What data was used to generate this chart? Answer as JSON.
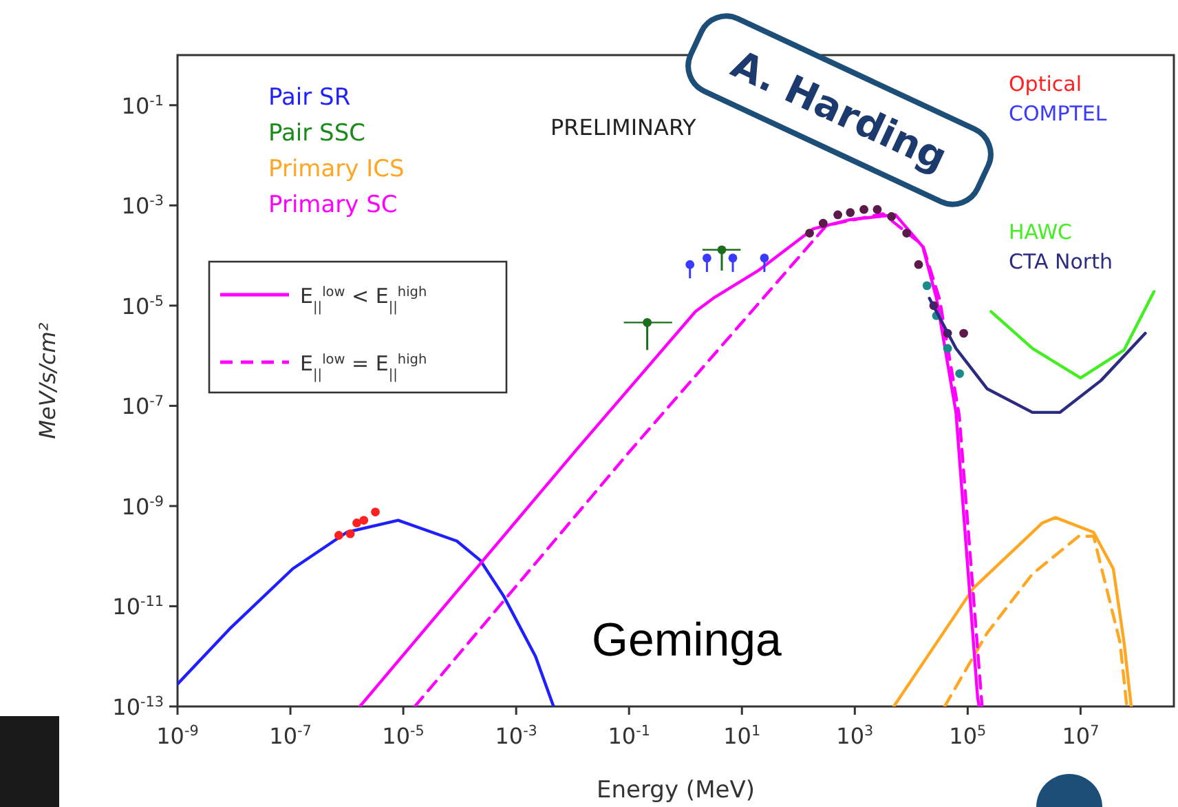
{
  "chart_data": {
    "type": "line",
    "xlabel": "Energy (MeV)",
    "ylabel": "MeV/s/cm²",
    "log": "xy",
    "grid": false,
    "legend": "top left",
    "xlim": [
      1e-09,
      450000000.0
    ],
    "ylim": [
      1e-13,
      1
    ],
    "xticks": [
      {
        "value": 1e-09,
        "label": "10$^{-9}$"
      },
      {
        "value": 1e-07,
        "label": "10$^{-7}$"
      },
      {
        "value": 1e-05,
        "label": "10$^{-5}$"
      },
      {
        "value": 0.001,
        "label": "10$^{-3}$"
      },
      {
        "value": 0.1,
        "label": "10$^{-1}$"
      },
      {
        "value": 10,
        "label": "10$^{1}$"
      },
      {
        "value": 1000,
        "label": "10$^{3}$"
      },
      {
        "value": 100000.0,
        "label": "10$^{5}$"
      },
      {
        "value": 10000000.0,
        "label": "10$^{7}$"
      }
    ],
    "yticks": [
      {
        "value": 1e-13,
        "label": "10$^{-13}$"
      },
      {
        "value": 1e-11,
        "label": "10$^{-11}$"
      },
      {
        "value": 1e-09,
        "label": "10$^{-9}$"
      },
      {
        "value": 1e-07,
        "label": "10$^{-7}$"
      },
      {
        "value": 1e-05,
        "label": "10$^{-5}$"
      },
      {
        "value": 0.001,
        "label": "10$^{-3}$"
      },
      {
        "value": 0.1,
        "label": "10$^{-1}$"
      }
    ],
    "annotations": [
      "PRELIMINARY",
      "Geminga",
      "E$_{||}$$^{low}$ < E$_{||}$$^{high}$",
      "E$_{||}$$^{low}$ = E$_{||}$$^{high}$",
      "A. Harding"
    ],
    "series": [
      {
        "name": "Pair SR",
        "color": "#1f1fff",
        "line_style": "solid",
        "x": [
          1e-09,
          8.3e-09,
          1.1e-07,
          1e-06,
          8.1e-06,
          8.9e-05,
          0.00023,
          0.0006,
          0.0022,
          0.0046
        ],
        "values": [
          2.8e-13,
          3.5e-12,
          5.6e-11,
          3e-10,
          5.2e-10,
          2e-10,
          8.3e-11,
          1.6e-11,
          1e-12,
          1e-13
        ]
      },
      {
        "name": "Pair SSC",
        "color": "#1a8a1a",
        "line_style": "solid"
      },
      {
        "name": "Primary ICS",
        "color": "#ffa623",
        "line_style": "solid",
        "x": [
          4900,
          126000.0,
          2100000.0,
          3600000.0,
          17000000.0,
          38000000.0,
          59000000.0,
          79000000.0
        ],
        "values": [
          1e-13,
          2.3e-11,
          4.6e-10,
          5.9e-10,
          3e-10,
          5.6e-11,
          1.9e-12,
          1e-13
        ]
      },
      {
        "color": "#ffa623",
        "line_style": "dashed",
        "x": [
          39000.0,
          220000.0,
          1400000.0,
          9300000.0,
          17000000.0,
          50000000.0,
          66000000.0
        ],
        "values": [
          1e-13,
          2.9e-12,
          4.4e-11,
          2.5e-10,
          2.5e-10,
          1.9e-12,
          1e-13
        ]
      },
      {
        "name": "Primary SC",
        "color": "#ff00ff",
        "line_style": "solid",
        "x": [
          1.7e-06,
          0.0115,
          1.5,
          3.1,
          19.5,
          182,
          832,
          5250,
          16000.0,
          28000.0,
          62000.0,
          150000.0,
          160000.0
        ],
        "values": [
          1e-13,
          1.3e-08,
          7.6e-06,
          1.4e-05,
          5e-05,
          0.00034,
          0.00052,
          0.00065,
          0.00015,
          1.4e-05,
          7.4e-08,
          1.5e-13,
          1e-13
        ]
      },
      {
        "color": "#ff00ff",
        "line_style": "dashed",
        "x": [
          1.6e-05,
          0.107,
          316,
          3160,
          16000.0,
          32000.0,
          71000.0,
          180000.0
        ],
        "values": [
          1e-13,
          1.3e-08,
          0.0004,
          0.00068,
          0.00016,
          1.3e-05,
          6.3e-08,
          1e-13
        ]
      },
      {
        "name": "Optical",
        "type": "scatter",
        "marker": "circle",
        "color": "#ff2020",
        "x": [
          7.2e-07,
          1.15e-06,
          1.5e-06,
          2e-06,
          3.2e-06
        ],
        "values": [
          2.6e-10,
          2.8e-10,
          4.6e-10,
          5.2e-10,
          7.6e-10
        ]
      },
      {
        "name": "COMPTEL",
        "type": "scatter",
        "marker": "circle",
        "color": "#3a3aff",
        "x": [
          1.2,
          2.4,
          6.9,
          25
        ],
        "values": [
          6.6e-05,
          8.9e-05,
          8.9e-05,
          8.9e-05
        ],
        "errors": [
          [
            3.5e-05,
            6.6e-05
          ],
          [
            4.7e-05,
            8.9e-05
          ],
          [
            4.7e-05,
            8.9e-05
          ],
          [
            4.7e-05,
            8.9e-05
          ]
        ]
      },
      {
        "type": "scatter",
        "marker": "circle",
        "color": "#5a1a4a",
        "x": [
          158,
          275,
          500,
          832,
          1450,
          2500,
          4470,
          8300,
          13500.0,
          25000.0,
          44000.0,
          85000.0
        ],
        "values": [
          0.00028,
          0.00044,
          0.00065,
          0.00072,
          0.00083,
          0.00083,
          0.0006,
          0.00028,
          6.6e-05,
          1e-05,
          2.8e-06,
          2.8e-06
        ]
      },
      {
        "type": "scatter",
        "marker": "circle",
        "color": "#1b6e1b",
        "x": [
          0.21,
          4.4
        ],
        "values": [
          4.6e-06,
          0.00013
        ],
        "errors": [
          [
            1.3e-06,
            4.6e-06
          ],
          [
            5e-05,
            0.00013
          ]
        ],
        "xerrors": [
          [
            0.081,
            0.58
          ],
          [
            2,
            9.5
          ]
        ]
      },
      {
        "type": "scatter",
        "marker": "circle",
        "color": "#1b8a8a",
        "x": [
          19000.0,
          28000.0,
          44000.0,
          72000.0
        ],
        "values": [
          2.5e-05,
          6.3e-06,
          1.4e-06,
          4.4e-07
        ]
      },
      {
        "name": "HAWC",
        "color": "#44ee22",
        "line_style": "solid",
        "x": [
          260000.0,
          1400000.0,
          10000000.0,
          59000000.0,
          200000000.0
        ],
        "values": [
          7.6e-06,
          1.4e-06,
          3.6e-07,
          1.3e-06,
          1.9e-05
        ]
      },
      {
        "name": "CTA North",
        "color": "#2b2b80",
        "line_style": "solid",
        "x": [
          21000.0,
          62000.0,
          220000.0,
          1400000.0,
          4300000.0,
          23000000.0,
          140000000.0
        ],
        "values": [
          1.4e-05,
          1.4e-06,
          2.2e-07,
          7.4e-08,
          7.4e-08,
          3.2e-07,
          2.8e-06
        ]
      }
    ]
  }
}
